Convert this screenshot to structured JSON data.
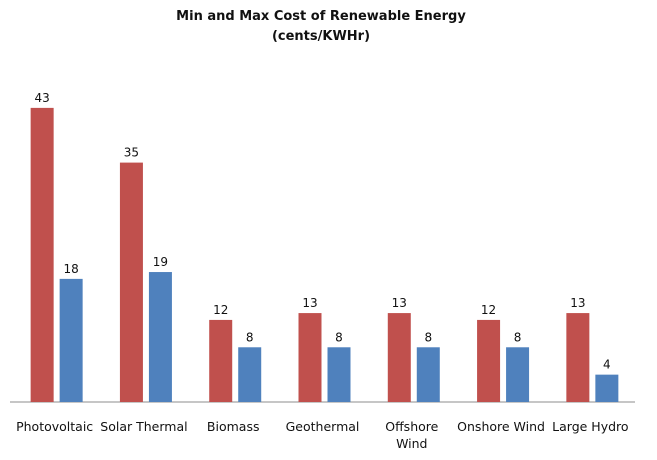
{
  "chart_data": {
    "type": "bar",
    "title": "Min and Max  Cost of  Renewable Energy",
    "subtitle": "(cents/KWHr)",
    "categories": [
      [
        "Photovoltaic"
      ],
      [
        "Solar Thermal"
      ],
      [
        "Biomass"
      ],
      [
        "Geothermal"
      ],
      [
        "Offshore",
        "Wind"
      ],
      [
        "Onshore Wind"
      ],
      [
        "Large Hydro"
      ]
    ],
    "series": [
      {
        "values": [
          43,
          35,
          12,
          13,
          13,
          12,
          13
        ],
        "color": "#c0504d"
      },
      {
        "values": [
          18,
          19,
          8,
          8,
          8,
          8,
          4
        ],
        "color": "#4f81bd"
      }
    ],
    "xlabel": "",
    "ylabel": "",
    "ylim": [
      0,
      50
    ],
    "grid": false,
    "legend": "none",
    "data_labels": true
  }
}
